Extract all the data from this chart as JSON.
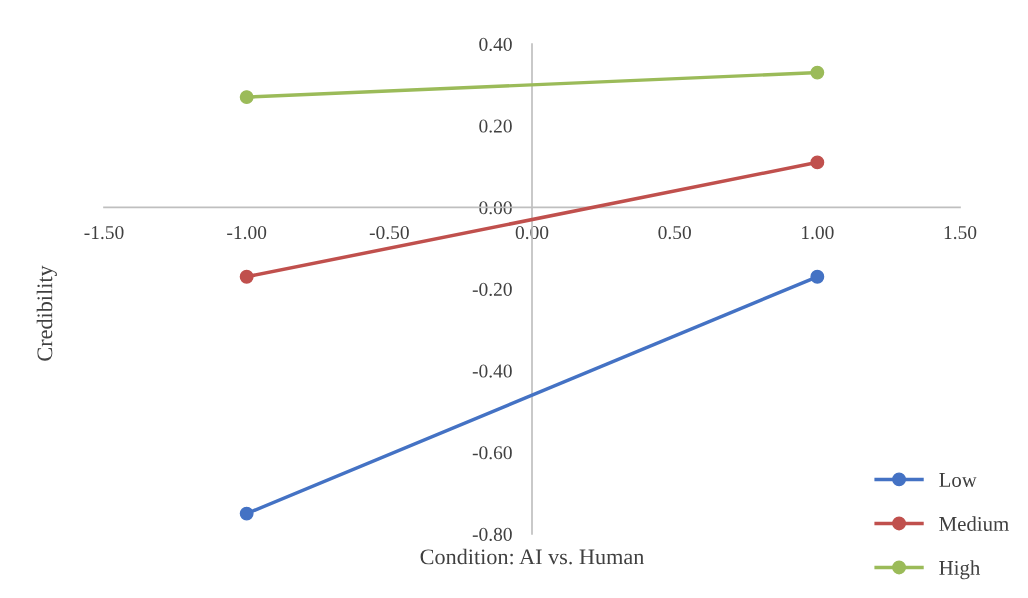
{
  "chart_data": {
    "type": "line",
    "xlabel": "Condition: AI vs. Human",
    "ylabel": "Credibility",
    "x": [
      -1,
      1
    ],
    "series": [
      {
        "name": "Low",
        "color": "#4472c4",
        "values": [
          -0.75,
          -0.17
        ]
      },
      {
        "name": "Medium",
        "color": "#c0504d",
        "values": [
          -0.17,
          0.11
        ]
      },
      {
        "name": "High",
        "color": "#9bbb59",
        "values": [
          0.27,
          0.33
        ]
      }
    ],
    "xlim": [
      -1.5,
      1.5
    ],
    "ylim": [
      -0.8,
      0.4
    ],
    "xticks": [
      {
        "value": -1.5,
        "label": "-1.50"
      },
      {
        "value": -1,
        "label": "-1.00"
      },
      {
        "value": -0.5,
        "label": "-0.50"
      },
      {
        "value": 0,
        "label": "0.00"
      },
      {
        "value": 0.5,
        "label": "0.50"
      },
      {
        "value": 1,
        "label": "1.00"
      },
      {
        "value": 1.5,
        "label": "1.50"
      }
    ],
    "yticks": [
      {
        "value": -0.8,
        "label": "-0.80"
      },
      {
        "value": -0.6,
        "label": "-0.60"
      },
      {
        "value": -0.4,
        "label": "-0.40"
      },
      {
        "value": -0.2,
        "label": "-0.20"
      },
      {
        "value": 0,
        "label": "0.00"
      },
      {
        "value": 0.2,
        "label": "0.20"
      },
      {
        "value": 0.4,
        "label": "0.40"
      }
    ],
    "grid": false,
    "legend": "bottom right",
    "marker": "circle",
    "line_style": "solid"
  }
}
